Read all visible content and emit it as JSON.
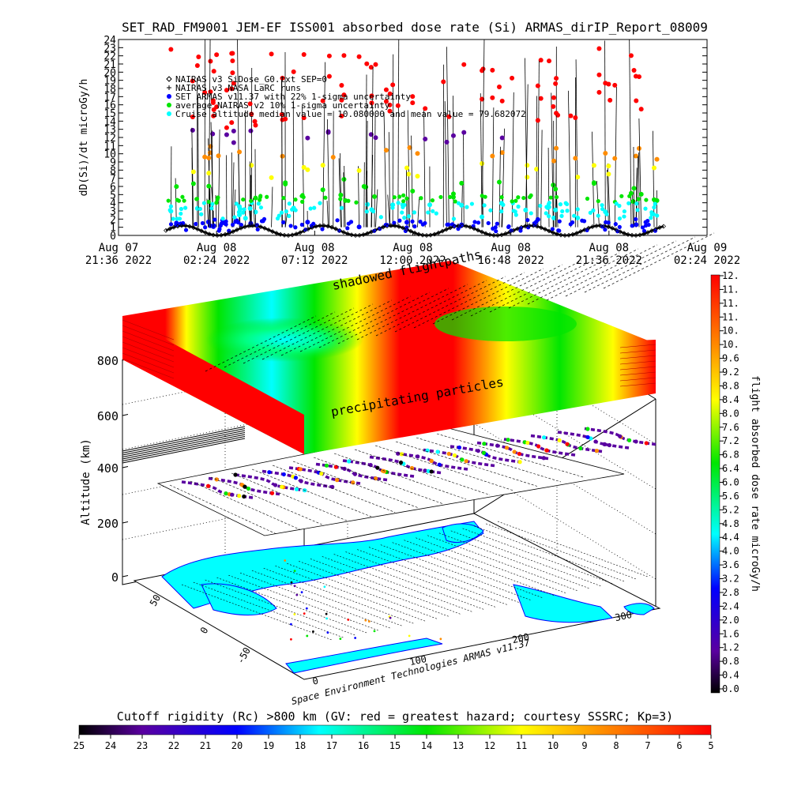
{
  "title": "SET_RAD_FM9001  JEM-EF ISS001 absorbed dose rate (Si) ARMAS_dirIP_Report_08009",
  "colors": {
    "red": "#ff0000",
    "orange": "#ff8c00",
    "yellow": "#ffff00",
    "green": "#00e600",
    "cyan": "#00ffff",
    "blue": "#0000ff",
    "purple": "#5a00a0",
    "black": "#000000"
  },
  "chart_data": [
    {
      "type": "line",
      "ylabel": "dD(Si)/dt microGy/h",
      "ylim": [
        0,
        24
      ],
      "y_ticks": [
        "0",
        "1",
        "2",
        "3",
        "4",
        "5",
        "6",
        "7",
        "8",
        "9",
        "10",
        "11",
        "12",
        "13",
        "14",
        "15",
        "16",
        "17",
        "18",
        "19",
        "20",
        "21",
        "22",
        "23",
        "24"
      ],
      "x_ticks": [
        {
          "line1": "Aug 07",
          "line2": "21:36 2022"
        },
        {
          "line1": "Aug 08",
          "line2": "02:24 2022"
        },
        {
          "line1": "Aug 08",
          "line2": "07:12 2022"
        },
        {
          "line1": "Aug 08",
          "line2": "12:00 2022"
        },
        {
          "line1": "Aug 08",
          "line2": "16:48 2022"
        },
        {
          "line1": "Aug 08",
          "line2": "21:36 2022"
        },
        {
          "line1": "Aug 09",
          "line2": "02:24 2022"
        }
      ],
      "legend": [
        "NAIRAS v3 SiDose_G0.txt SEP=0",
        "NAIRAS v3 NASA LaRC runs",
        "SET ARMAS v11.37 with 22% 1-sigma uncertainty",
        "average NAIRAS v2 10% 1-sigma uncertainty",
        "Cruise altitude median value = 10.080000 and mean value = 79.682072"
      ],
      "legend_markers": [
        "diamond",
        "plus",
        "dot-blue",
        "dot-green",
        "dot-cyan"
      ],
      "series": [
        {
          "name": "NAIRAS v3 SiDose_G0.txt SEP=0",
          "baseline": 0.6,
          "amplitude": 0.6
        },
        {
          "name": "SET ARMAS v11.37 with 22% 1-sigma uncertainty",
          "baseline": 2,
          "spike_max": 24
        }
      ]
    },
    {
      "type": "heatmap",
      "ylabel": "Altitude (km)",
      "z_ticks": [
        "0",
        "200",
        "400",
        "600",
        "800"
      ],
      "lat_ticks": [
        "-50",
        "0",
        "50"
      ],
      "lon_ticks": [
        "0",
        "100",
        "200",
        "300"
      ],
      "annotations": [
        "shadowed flightpaths",
        "precipitating particles"
      ],
      "credit": "Space Environment Technologies ARMAS v11.37"
    },
    {
      "type": "heatmap",
      "colorbar_label": "flight absorbed dose rate microGy/h",
      "colorbar_ticks": [
        "0.0",
        "0.4",
        "0.8",
        "1.2",
        "1.6",
        "2.0",
        "2.4",
        "2.8",
        "3.2",
        "3.6",
        "4.0",
        "4.4",
        "4.8",
        "5.2",
        "5.6",
        "6.0",
        "6.4",
        "6.8",
        "7.2",
        "7.6",
        "8.0",
        "8.4",
        "8.8",
        "9.2",
        "9.6",
        "10.",
        "10.",
        "11.",
        "11.",
        "11.",
        "12."
      ],
      "range": [
        0,
        12
      ]
    },
    {
      "type": "heatmap",
      "colorbar_label": "Cutoff rigidity (Rc) >800 km (GV: red = greatest hazard; courtesy SSSRC; Kp=3)",
      "colorbar_ticks": [
        "25",
        "24",
        "23",
        "22",
        "21",
        "20",
        "19",
        "18",
        "17",
        "16",
        "15",
        "14",
        "13",
        "12",
        "11",
        "10",
        "9",
        "8",
        "7",
        "6",
        "5"
      ],
      "range": [
        25,
        5
      ]
    }
  ]
}
